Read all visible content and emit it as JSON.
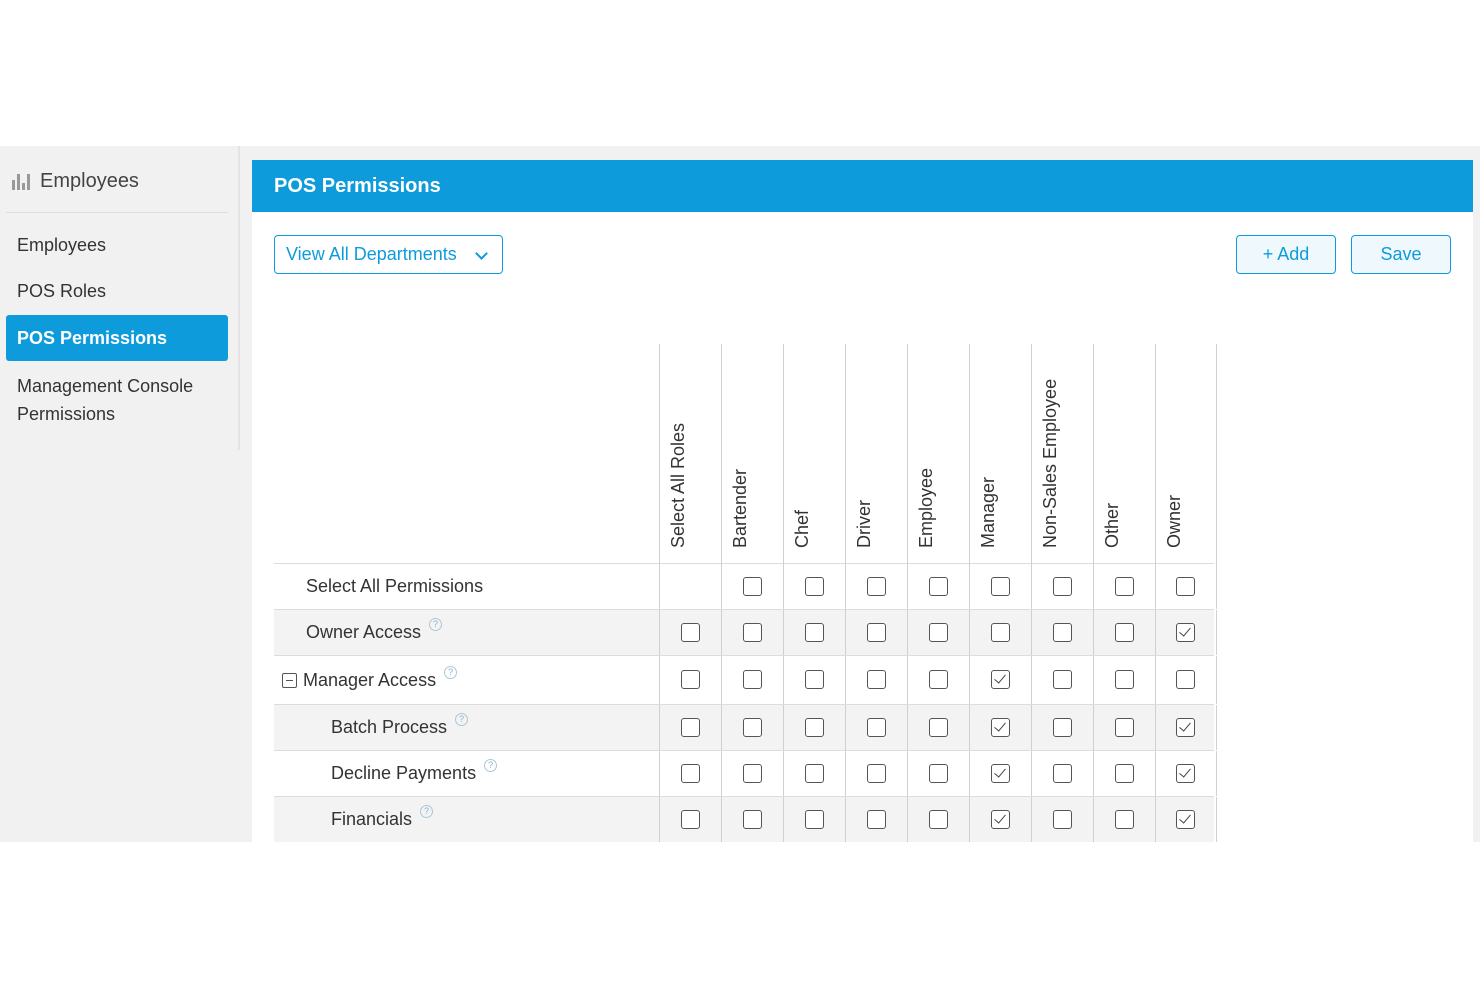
{
  "sidebar": {
    "header_icon": "bar-chart-icon",
    "header_label": "Employees",
    "items": [
      {
        "label": "Employees",
        "active": false
      },
      {
        "label": "POS Roles",
        "active": false
      },
      {
        "label": "POS Permissions",
        "active": true
      },
      {
        "label": "Management Console\nPermissions",
        "active": false
      }
    ]
  },
  "panel": {
    "title": "POS Permissions",
    "department_select": "View All Departments",
    "add_label": "+ Add",
    "save_label": "Save"
  },
  "grid": {
    "roles": [
      "Select All Roles",
      "Bartender",
      "Chef",
      "Driver",
      "Employee",
      "Manager",
      "Non-Sales Employee",
      "Other",
      "Owner"
    ],
    "rows": [
      {
        "label": "Select All Permissions",
        "help": false,
        "collapsible": false,
        "indent": 1,
        "checks": [
          null,
          false,
          false,
          false,
          false,
          false,
          false,
          false,
          false
        ]
      },
      {
        "label": "Owner Access",
        "help": true,
        "collapsible": false,
        "indent": 1,
        "checks": [
          false,
          false,
          false,
          false,
          false,
          false,
          false,
          false,
          true
        ]
      },
      {
        "label": "Manager Access",
        "help": true,
        "collapsible": true,
        "indent": 0,
        "checks": [
          false,
          false,
          false,
          false,
          false,
          true,
          false,
          false,
          false
        ]
      },
      {
        "label": "Batch Process",
        "help": true,
        "collapsible": false,
        "indent": 2,
        "checks": [
          false,
          false,
          false,
          false,
          false,
          true,
          false,
          false,
          true
        ]
      },
      {
        "label": "Decline Payments",
        "help": true,
        "collapsible": false,
        "indent": 2,
        "checks": [
          false,
          false,
          false,
          false,
          false,
          true,
          false,
          false,
          true
        ]
      },
      {
        "label": "Financials",
        "help": true,
        "collapsible": false,
        "indent": 2,
        "checks": [
          false,
          false,
          false,
          false,
          false,
          true,
          false,
          false,
          true
        ]
      }
    ]
  },
  "colors": {
    "accent": "#0e9bdc"
  }
}
